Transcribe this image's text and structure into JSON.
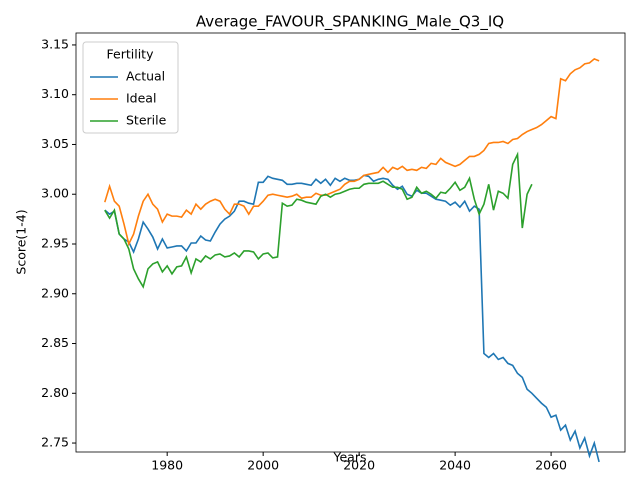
{
  "chart_data": {
    "type": "line",
    "title": "Average_FAVOUR_SPANKING_Male_Q3_IQ",
    "xlabel": "Years",
    "ylabel": "Score(1-4)",
    "legend_title": "Fertility",
    "legend": "upper left",
    "grid": false,
    "x": [
      1967,
      1968,
      1969,
      1970,
      1971,
      1972,
      1973,
      1974,
      1975,
      1976,
      1977,
      1978,
      1979,
      1980,
      1981,
      1982,
      1983,
      1984,
      1985,
      1986,
      1987,
      1988,
      1989,
      1990,
      1991,
      1992,
      1993,
      1994,
      1995,
      1996,
      1997,
      1998,
      1999,
      2000,
      2001,
      2002,
      2003,
      2004,
      2005,
      2006,
      2007,
      2008,
      2009,
      2010,
      2011,
      2012,
      2013,
      2014,
      2015,
      2016,
      2017,
      2018,
      2019,
      2020,
      2021,
      2022,
      2023,
      2024,
      2025,
      2026,
      2027,
      2028,
      2029,
      2030,
      2031,
      2032,
      2033,
      2034,
      2035,
      2036,
      2037,
      2038,
      2039,
      2040,
      2041,
      2042,
      2043,
      2044,
      2045,
      2046,
      2047,
      2048,
      2049,
      2050,
      2051,
      2052,
      2053,
      2054,
      2055,
      2056,
      2057,
      2058,
      2059,
      2060,
      2061,
      2062,
      2063,
      2064,
      2065,
      2066,
      2067,
      2068,
      2069,
      2070
    ],
    "series": [
      {
        "name": "Actual",
        "color": "#1f77b4",
        "values": [
          2.984,
          2.98,
          2.983,
          2.96,
          2.955,
          2.952,
          2.942,
          2.955,
          2.972,
          2.965,
          2.957,
          2.945,
          2.955,
          2.946,
          2.947,
          2.948,
          2.948,
          2.943,
          2.951,
          2.951,
          2.958,
          2.954,
          2.953,
          2.962,
          2.97,
          2.975,
          2.978,
          2.983,
          2.993,
          2.993,
          2.991,
          2.99,
          3.012,
          3.012,
          3.018,
          3.016,
          3.015,
          3.014,
          3.01,
          3.01,
          3.011,
          3.011,
          3.01,
          3.009,
          3.015,
          3.011,
          3.015,
          3.009,
          3.016,
          3.013,
          3.016,
          3.014,
          3.014,
          3.015,
          3.019,
          3.018,
          3.013,
          3.015,
          3.016,
          3.015,
          3.009,
          3.005,
          3.008,
          3.0,
          2.998,
          3.004,
          3.001,
          3.001,
          2.998,
          2.995,
          2.994,
          2.993,
          2.989,
          2.992,
          2.987,
          2.993,
          2.983,
          2.988,
          2.985,
          2.84,
          2.836,
          2.84,
          2.834,
          2.836,
          2.83,
          2.828,
          2.82,
          2.816,
          2.804,
          2.8,
          2.795,
          2.79,
          2.786,
          2.776,
          2.778,
          2.763,
          2.768,
          2.753,
          2.762,
          2.745,
          2.755,
          2.737,
          2.75,
          2.731
        ]
      },
      {
        "name": "Ideal",
        "color": "#ff7f0e",
        "values": [
          2.992,
          3.008,
          2.993,
          2.988,
          2.97,
          2.95,
          2.96,
          2.978,
          2.993,
          3.0,
          2.99,
          2.985,
          2.972,
          2.98,
          2.978,
          2.978,
          2.977,
          2.984,
          2.98,
          2.99,
          2.985,
          2.99,
          2.993,
          2.995,
          2.993,
          2.985,
          2.98,
          2.99,
          2.99,
          2.988,
          2.98,
          2.988,
          2.988,
          2.993,
          2.999,
          3.0,
          2.999,
          2.998,
          2.997,
          2.998,
          3.0,
          2.996,
          2.997,
          2.997,
          3.001,
          2.999,
          2.999,
          3.001,
          3.003,
          3.005,
          3.01,
          3.013,
          3.013,
          3.015,
          3.019,
          3.02,
          3.021,
          3.022,
          3.027,
          3.022,
          3.027,
          3.025,
          3.028,
          3.024,
          3.025,
          3.024,
          3.027,
          3.026,
          3.031,
          3.03,
          3.036,
          3.032,
          3.03,
          3.028,
          3.03,
          3.034,
          3.038,
          3.038,
          3.04,
          3.044,
          3.051,
          3.052,
          3.052,
          3.053,
          3.051,
          3.055,
          3.056,
          3.06,
          3.063,
          3.065,
          3.067,
          3.07,
          3.074,
          3.078,
          3.076,
          3.116,
          3.114,
          3.121,
          3.125,
          3.127,
          3.131,
          3.132,
          3.136,
          3.134
        ]
      },
      {
        "name": "Sterile",
        "color": "#2ca02c",
        "values": [
          2.984,
          2.976,
          2.984,
          2.96,
          2.955,
          2.945,
          2.925,
          2.915,
          2.907,
          2.925,
          2.93,
          2.932,
          2.922,
          2.928,
          2.92,
          2.927,
          2.928,
          2.937,
          2.921,
          2.935,
          2.932,
          2.938,
          2.935,
          2.939,
          2.94,
          2.937,
          2.938,
          2.941,
          2.937,
          2.943,
          2.943,
          2.942,
          2.935,
          2.94,
          2.941,
          2.936,
          2.937,
          2.991,
          2.988,
          2.989,
          2.995,
          2.994,
          2.992,
          2.991,
          2.99,
          2.998,
          3.0,
          2.997,
          3.0,
          3.001,
          3.003,
          3.005,
          3.006,
          3.006,
          3.01,
          3.011,
          3.011,
          3.011,
          3.013,
          3.01,
          3.007,
          3.007,
          3.005,
          2.995,
          2.997,
          3.007,
          3.001,
          3.003,
          3.0,
          2.996,
          3.002,
          3.001,
          3.006,
          3.012,
          3.004,
          3.007,
          3.016,
          2.995,
          2.98,
          2.99,
          3.01,
          2.984,
          3.003,
          3.001,
          2.996,
          3.03,
          3.04,
          2.966,
          3.0,
          3.01,
          null,
          null,
          null,
          null,
          null,
          null,
          null,
          null,
          null,
          null,
          null,
          null,
          null,
          null
        ]
      }
    ],
    "xlim": [
      1961,
      2075.4
    ],
    "ylim": [
      2.741,
      3.162
    ],
    "xticks": [
      1980,
      2000,
      2020,
      2040,
      2060
    ],
    "yticks": [
      2.75,
      {
        "value": 2.8,
        "label": "2.80"
      },
      2.85,
      {
        "value": 2.9,
        "label": "2.90"
      },
      2.95,
      {
        "value": 3.0,
        "label": "3.00"
      },
      3.05,
      {
        "value": 3.1,
        "label": "3.10"
      },
      3.15
    ]
  }
}
